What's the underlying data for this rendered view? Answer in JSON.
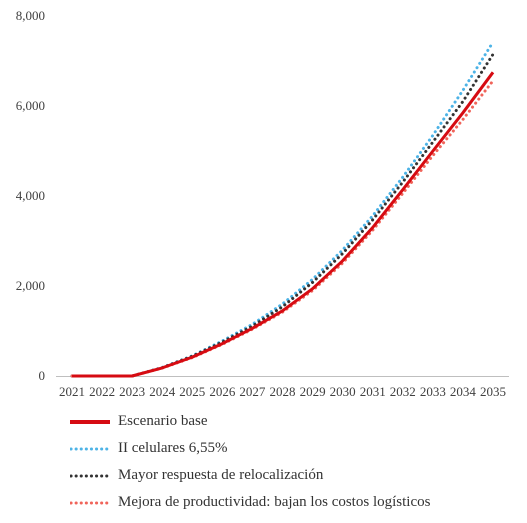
{
  "chart_data": {
    "type": "line",
    "title": "",
    "xlabel": "",
    "ylabel": "",
    "x": [
      "2021",
      "2022",
      "2023",
      "2024",
      "2025",
      "2026",
      "2027",
      "2028",
      "2029",
      "2030",
      "2031",
      "2032",
      "2033",
      "2034",
      "2035"
    ],
    "ylim": [
      0,
      8000
    ],
    "yticks": [
      "0",
      "2,000",
      "4,000",
      "6,000",
      "8,000"
    ],
    "y_tick_values": [
      0,
      2000,
      4000,
      6000,
      8000
    ],
    "grid": false,
    "legend_position": "bottom",
    "series": [
      {
        "name": "Escenario base",
        "color": "#d60b12",
        "style": "solid",
        "values": [
          0,
          0,
          0,
          180,
          420,
          720,
          1060,
          1450,
          1940,
          2560,
          3300,
          4140,
          5000,
          5850,
          6750
        ]
      },
      {
        "name": "II celulares 6,55%",
        "color": "#4db3e6",
        "style": "dotted",
        "values": [
          0,
          0,
          0,
          190,
          450,
          780,
          1150,
          1600,
          2150,
          2800,
          3560,
          4420,
          5350,
          6350,
          7420
        ]
      },
      {
        "name": "Mayor respuesta de relocalización",
        "color": "#333333",
        "style": "dotted",
        "values": [
          0,
          0,
          0,
          185,
          440,
          755,
          1110,
          1540,
          2080,
          2720,
          3470,
          4310,
          5200,
          6100,
          7150
        ]
      },
      {
        "name": "Mejora de productividad: bajan los costos logísticos",
        "color": "#f0645a",
        "style": "dotted",
        "values": [
          0,
          0,
          0,
          175,
          410,
          705,
          1040,
          1420,
          1900,
          2510,
          3240,
          4060,
          4900,
          5700,
          6560
        ]
      }
    ]
  }
}
